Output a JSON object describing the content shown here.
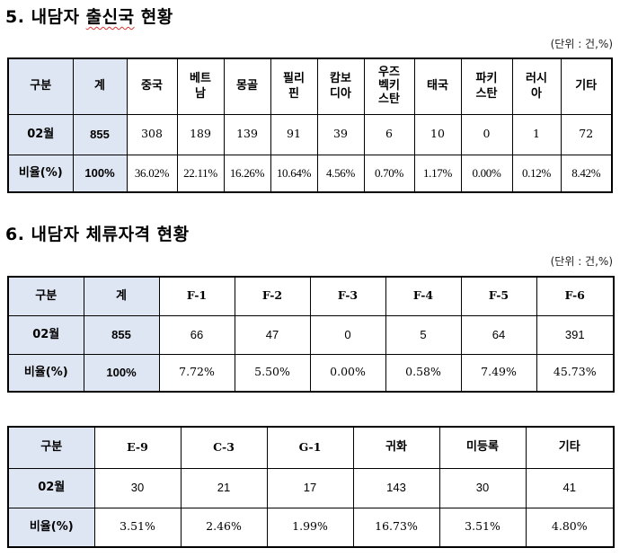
{
  "section5": {
    "number": "5.",
    "title_plain": "내담자",
    "title_marked": "출신국",
    "title_rest": "현황",
    "unit": "(단위 : 건,%)",
    "header": [
      "구분",
      "계",
      "중국",
      "베트\n남",
      "몽골",
      "필리\n핀",
      "캄보\n디아",
      "우즈\n벡키\n스탄",
      "태국",
      "파키\n스탄",
      "러시\n아",
      "기타"
    ],
    "row_count": [
      "02월",
      "855",
      "308",
      "189",
      "139",
      "91",
      "39",
      "6",
      "10",
      "0",
      "1",
      "72"
    ],
    "row_ratio": [
      "비율(%)",
      "100%",
      "36.02%",
      "22.11%",
      "16.26%",
      "10.64%",
      "4.56%",
      "0.70%",
      "1.17%",
      "0.00%",
      "0.12%",
      "8.42%"
    ]
  },
  "section6": {
    "title": "6. 내담자 체류자격 현황",
    "unit": "(단위 : 건,%)",
    "table1": {
      "header": [
        "구분",
        "계",
        "F-1",
        "F-2",
        "F-3",
        "F-4",
        "F-5",
        "F-6"
      ],
      "row_count": [
        "02월",
        "855",
        "66",
        "47",
        "0",
        "5",
        "64",
        "391"
      ],
      "row_ratio": [
        "비율(%)",
        "100%",
        "7.72%",
        "5.50%",
        "0.00%",
        "0.58%",
        "7.49%",
        "45.73%"
      ]
    },
    "table2": {
      "header": [
        "구분",
        "E-9",
        "C-3",
        "G-1",
        "귀화",
        "미등록",
        "기타"
      ],
      "row_count": [
        "02월",
        "30",
        "21",
        "17",
        "143",
        "30",
        "41"
      ],
      "row_ratio": [
        "비율(%)",
        "3.51%",
        "2.46%",
        "1.99%",
        "16.73%",
        "3.51%",
        "4.80%"
      ]
    }
  }
}
